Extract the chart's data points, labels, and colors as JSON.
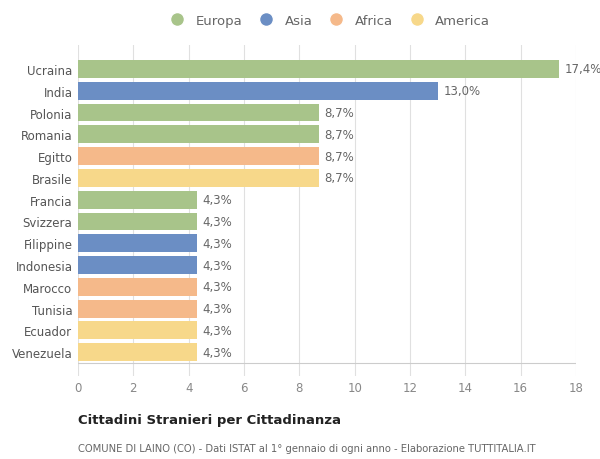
{
  "categories": [
    "Venezuela",
    "Ecuador",
    "Tunisia",
    "Marocco",
    "Indonesia",
    "Filippine",
    "Svizzera",
    "Francia",
    "Brasile",
    "Egitto",
    "Romania",
    "Polonia",
    "India",
    "Ucraina"
  ],
  "values": [
    4.3,
    4.3,
    4.3,
    4.3,
    4.3,
    4.3,
    4.3,
    4.3,
    8.7,
    8.7,
    8.7,
    8.7,
    13.0,
    17.4
  ],
  "labels": [
    "4,3%",
    "4,3%",
    "4,3%",
    "4,3%",
    "4,3%",
    "4,3%",
    "4,3%",
    "4,3%",
    "8,7%",
    "8,7%",
    "8,7%",
    "8,7%",
    "13,0%",
    "17,4%"
  ],
  "colors": [
    "#f7d88a",
    "#f7d88a",
    "#f5b98a",
    "#f5b98a",
    "#6b8ec4",
    "#6b8ec4",
    "#a8c48a",
    "#a8c48a",
    "#f7d88a",
    "#f5b98a",
    "#a8c48a",
    "#a8c48a",
    "#6b8ec4",
    "#a8c48a"
  ],
  "legend": [
    {
      "label": "Europa",
      "color": "#a8c48a"
    },
    {
      "label": "Asia",
      "color": "#6b8ec4"
    },
    {
      "label": "Africa",
      "color": "#f5b98a"
    },
    {
      "label": "America",
      "color": "#f7d88a"
    }
  ],
  "xlim": [
    0,
    18
  ],
  "xticks": [
    0,
    2,
    4,
    6,
    8,
    10,
    12,
    14,
    16,
    18
  ],
  "title_bold": "Cittadini Stranieri per Cittadinanza",
  "title_sub": "COMUNE DI LAINO (CO) - Dati ISTAT al 1° gennaio di ogni anno - Elaborazione TUTTITALIA.IT",
  "background_color": "#ffffff",
  "grid_color": "#e0e0e0",
  "bar_height": 0.82,
  "label_fontsize": 8.5,
  "tick_fontsize": 8.5,
  "legend_fontsize": 9.5
}
